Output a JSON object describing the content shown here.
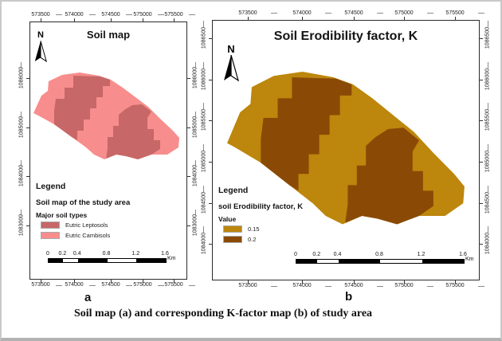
{
  "panel_a": {
    "title": "Soil map",
    "north_label": "N",
    "x_axis_labels": [
      "573500",
      "574000",
      "574500",
      "575000",
      "575500"
    ],
    "y_axis_labels": [
      "1086000",
      "1085000",
      "1084000",
      "1083000"
    ],
    "legend": {
      "heading": "Legend",
      "subheading": "Soil map of the study area",
      "group_label": "Major soil types",
      "items": [
        {
          "label": "Eutric Leptosols",
          "color": "#c76767"
        },
        {
          "label": "Eutric Cambisols",
          "color": "#f88d8d"
        }
      ]
    },
    "scale_bar": {
      "labels": [
        "0",
        "0.2",
        "0.4",
        "0.8",
        "1.2",
        "1.6"
      ],
      "unit": "Km"
    },
    "map_colors": {
      "base": "#f88d8d",
      "overlay": "#c76767"
    },
    "sublabel": "a"
  },
  "panel_b": {
    "title": "Soil Erodibility factor, K",
    "north_label": "N",
    "x_axis_labels": [
      "573500",
      "574000",
      "574500",
      "575000",
      "575500"
    ],
    "y_axis_labels": [
      "1086500",
      "1086000",
      "1085500",
      "1085000",
      "1084500",
      "1084000"
    ],
    "legend": {
      "heading": "Legend",
      "subheading": "soil Erodibility factor, K",
      "group_label": "Value",
      "items": [
        {
          "label": "0.15",
          "color": "#bd860c"
        },
        {
          "label": "0.2",
          "color": "#8a4a05"
        }
      ]
    },
    "scale_bar": {
      "labels": [
        "0",
        "0.2",
        "0.4",
        "0.8",
        "1.2",
        "1.6"
      ],
      "unit": "Km"
    },
    "map_colors": {
      "base": "#bd860c",
      "overlay": "#8a4a05"
    },
    "sublabel": "b"
  },
  "caption": "Soil map (a) and corresponding K-factor map (b) of study area"
}
